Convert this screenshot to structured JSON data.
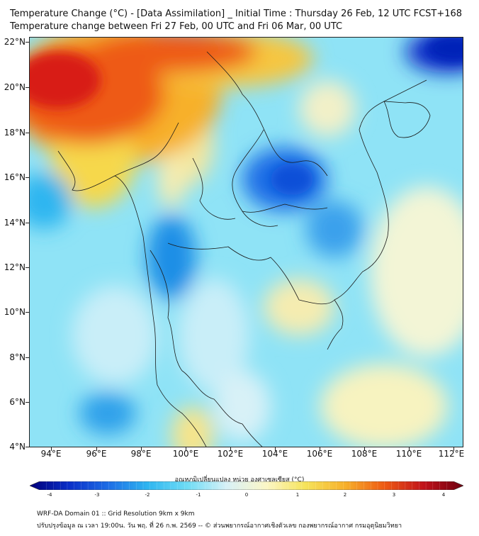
{
  "header": {
    "title_line1": "Temperature Change (°C) - [Data Assimilation] _ Initial Time : Thursday 26 Feb, 12 UTC FCST+168",
    "title_line2": "Temperature change between Fri 27 Feb, 00 UTC and Fri 06 Mar, 00 UTC"
  },
  "map": {
    "lat_labels": [
      "22°N",
      "20°N",
      "18°N",
      "16°N",
      "14°N",
      "12°N",
      "10°N",
      "8°N",
      "6°N",
      "4°N"
    ],
    "lon_labels": [
      "94°E",
      "96°E",
      "98°E",
      "100°E",
      "102°E",
      "104°E",
      "106°E",
      "108°E",
      "110°E",
      "112°E"
    ]
  },
  "colorbar": {
    "title": "อุณหภูมิเปลี่ยนแปลง หน่วย องศาเซลเซียส (°C)",
    "ticks": [
      "-4",
      "-3",
      "-2",
      "-1",
      "0",
      "1",
      "2",
      "3",
      "4"
    ],
    "colors": [
      "#00007a",
      "#0a2fc8",
      "#1e6ee6",
      "#2fb6f0",
      "#6fdcf5",
      "#d8f1f7",
      "#fbf6c6",
      "#f6e35a",
      "#f7b02a",
      "#ee5a14",
      "#c0121a",
      "#6e0010"
    ]
  },
  "footer": {
    "line1": "WRF-DA Domain 01 :: Grid Resolution 9km x 9km",
    "line2": "ปรับปรุงข้อมูล ณ เวลา 19:00น. วัน พฤ. ที่ 26 ก.พ. 2569 -- © ส่วนพยากรณ์อากาศเชิงตัวเลข กองพยากรณ์อากาศ กรมอุตุนิยมวิทยา"
  }
}
